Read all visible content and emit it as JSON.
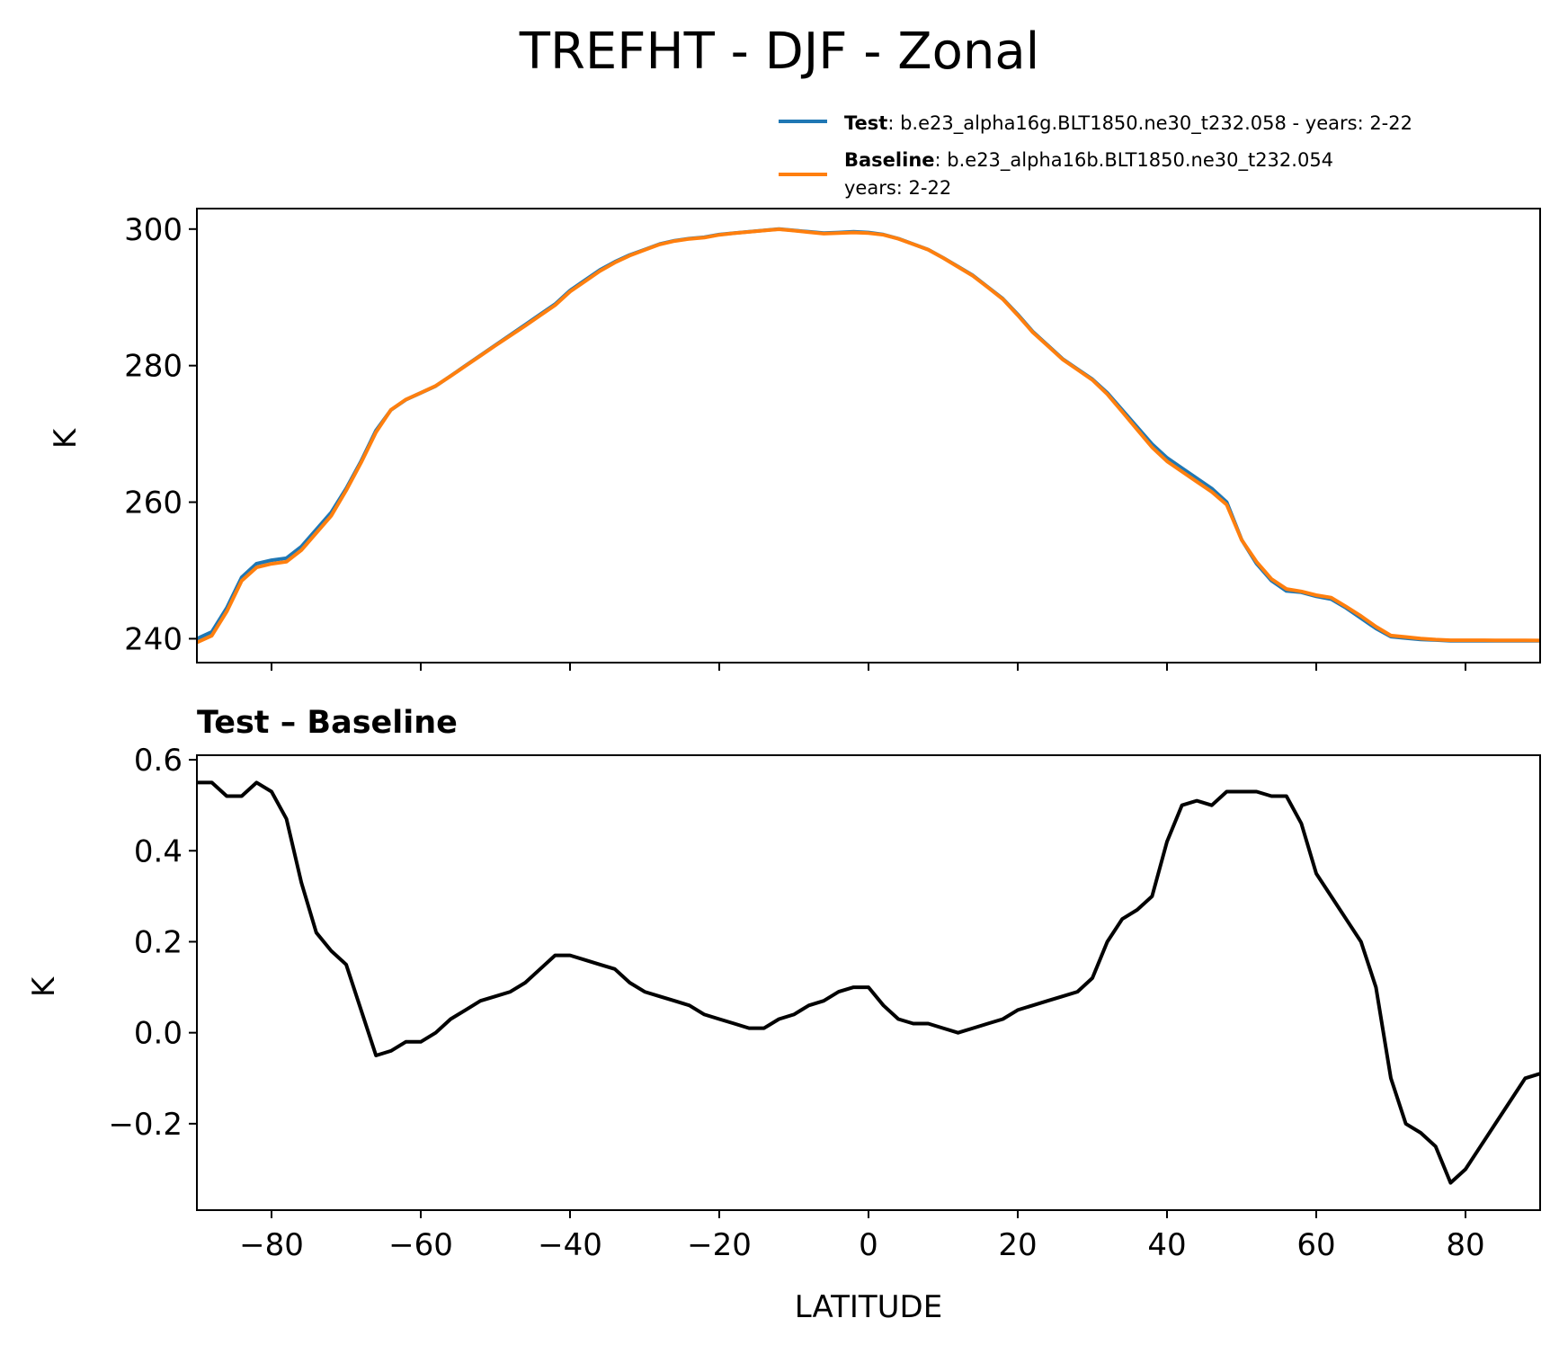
{
  "chart_data": [
    {
      "type": "line",
      "title": "TREFHT - DJF - Zonal",
      "xlabel": "",
      "ylabel": "K",
      "xlim": [
        -90,
        90
      ],
      "ylim": [
        236.5,
        303
      ],
      "yticks": [
        240,
        260,
        280,
        300
      ],
      "xticks": [
        -80,
        -60,
        -40,
        -20,
        0,
        20,
        40,
        60,
        80
      ],
      "grid": false,
      "legend": {
        "position": "above-right",
        "entries": [
          {
            "bold": "Test",
            "text": ": b.e23_alpha16g.BLT1850.ne30_t232.058 - years: 2-22",
            "color": "#1f77b4"
          },
          {
            "bold": "Baseline",
            "text": ": b.e23_alpha16b.BLT1850.ne30_t232.054",
            "text2": "years: 2-22",
            "color": "#ff7f0e"
          }
        ]
      },
      "x": [
        -90,
        -88,
        -86,
        -84,
        -82,
        -80,
        -78,
        -76,
        -74,
        -72,
        -70,
        -68,
        -66,
        -64,
        -62,
        -60,
        -58,
        -56,
        -54,
        -52,
        -50,
        -48,
        -46,
        -44,
        -42,
        -40,
        -38,
        -36,
        -34,
        -32,
        -30,
        -28,
        -26,
        -24,
        -22,
        -20,
        -18,
        -16,
        -14,
        -12,
        -10,
        -8,
        -6,
        -4,
        -2,
        0,
        2,
        4,
        6,
        8,
        10,
        12,
        14,
        16,
        18,
        20,
        22,
        24,
        26,
        28,
        30,
        32,
        34,
        36,
        38,
        40,
        42,
        44,
        46,
        48,
        50,
        52,
        54,
        56,
        58,
        60,
        62,
        64,
        66,
        68,
        70,
        72,
        74,
        76,
        78,
        80,
        82,
        84,
        86,
        88,
        90
      ],
      "series": [
        {
          "name": "Test",
          "color": "#1f77b4",
          "values": [
            240.0,
            241.0,
            244.5,
            249.0,
            251.0,
            251.5,
            251.8,
            253.5,
            256.0,
            258.5,
            262.0,
            266.0,
            270.5,
            273.5,
            275.0,
            276.0,
            277.0,
            278.5,
            280.0,
            281.5,
            283.0,
            284.5,
            286.0,
            287.5,
            289.0,
            291.0,
            292.5,
            294.0,
            295.2,
            296.2,
            297.0,
            297.8,
            298.3,
            298.6,
            298.8,
            299.2,
            299.4,
            299.6,
            299.8,
            300.0,
            299.8,
            299.6,
            299.4,
            299.5,
            299.6,
            299.5,
            299.2,
            298.6,
            297.8,
            297.0,
            295.8,
            294.5,
            293.2,
            291.5,
            289.8,
            287.5,
            285.0,
            283.0,
            281.0,
            279.5,
            278.0,
            276.0,
            273.5,
            271.0,
            268.5,
            266.5,
            265.0,
            263.5,
            262.0,
            260.0,
            254.5,
            251.0,
            248.5,
            247.0,
            246.8,
            246.2,
            245.8,
            244.5,
            243.0,
            241.5,
            240.3,
            240.1,
            239.9,
            239.8,
            239.7,
            239.7,
            239.7,
            239.7,
            239.7,
            239.7,
            239.7
          ]
        },
        {
          "name": "Baseline",
          "color": "#ff7f0e",
          "values": [
            239.45,
            240.45,
            243.98,
            248.48,
            250.45,
            250.97,
            251.28,
            252.97,
            255.49,
            258.01,
            261.72,
            265.79,
            270.25,
            273.52,
            275.03,
            276.02,
            277.03,
            278.47,
            279.96,
            281.44,
            282.93,
            284.39,
            285.84,
            287.36,
            288.84,
            290.83,
            292.34,
            293.85,
            295.08,
            296.11,
            296.94,
            297.74,
            298.24,
            298.56,
            298.75,
            299.16,
            299.39,
            299.59,
            299.79,
            299.97,
            299.77,
            299.55,
            299.32,
            299.41,
            299.5,
            299.4,
            299.16,
            298.58,
            297.78,
            296.98,
            295.77,
            294.46,
            293.14,
            291.45,
            289.72,
            287.38,
            284.9,
            282.92,
            280.92,
            279.42,
            277.9,
            275.82,
            273.24,
            270.63,
            268.04,
            265.99,
            264.48,
            263.0,
            261.51,
            259.63,
            254.48,
            251.26,
            248.75,
            247.28,
            246.93,
            246.38,
            246.02,
            244.71,
            243.32,
            241.77,
            240.46,
            240.25,
            240.01,
            239.87,
            239.78,
            239.78,
            239.78,
            239.77,
            239.76,
            239.75,
            239.74
          ]
        }
      ]
    },
    {
      "type": "line",
      "title": "Test – Baseline",
      "xlabel": "LATITUDE",
      "ylabel": "K",
      "xlim": [
        -90,
        90
      ],
      "ylim": [
        -0.39,
        0.61
      ],
      "yticks": [
        -0.2,
        0.0,
        0.2,
        0.4,
        0.6
      ],
      "ytick_labels": [
        "−0.2",
        "0.0",
        "0.2",
        "0.4",
        "0.6"
      ],
      "xticks": [
        -80,
        -60,
        -40,
        -20,
        0,
        20,
        40,
        60,
        80
      ],
      "xtick_labels": [
        "−80",
        "−60",
        "−40",
        "−20",
        "0",
        "20",
        "40",
        "60",
        "80"
      ],
      "grid": false,
      "x": [
        -90,
        -88,
        -86,
        -84,
        -82,
        -80,
        -78,
        -76,
        -74,
        -72,
        -70,
        -68,
        -66,
        -64,
        -62,
        -60,
        -58,
        -56,
        -54,
        -52,
        -50,
        -48,
        -46,
        -44,
        -42,
        -40,
        -38,
        -36,
        -34,
        -32,
        -30,
        -28,
        -26,
        -24,
        -22,
        -20,
        -18,
        -16,
        -14,
        -12,
        -10,
        -8,
        -6,
        -4,
        -2,
        0,
        2,
        4,
        6,
        8,
        10,
        12,
        14,
        16,
        18,
        20,
        22,
        24,
        26,
        28,
        30,
        32,
        34,
        36,
        38,
        40,
        42,
        44,
        46,
        48,
        50,
        52,
        54,
        56,
        58,
        60,
        62,
        64,
        66,
        68,
        70,
        72,
        74,
        76,
        78,
        80,
        82,
        84,
        86,
        88,
        90
      ],
      "series": [
        {
          "name": "",
          "color": "#000000",
          "values": [
            0.55,
            0.55,
            0.52,
            0.52,
            0.55,
            0.53,
            0.47,
            0.33,
            0.22,
            0.18,
            0.15,
            0.05,
            -0.05,
            -0.04,
            -0.02,
            -0.02,
            0.0,
            0.03,
            0.05,
            0.07,
            0.08,
            0.09,
            0.11,
            0.14,
            0.17,
            0.17,
            0.16,
            0.15,
            0.14,
            0.11,
            0.09,
            0.08,
            0.07,
            0.06,
            0.04,
            0.03,
            0.02,
            0.01,
            0.01,
            0.03,
            0.04,
            0.06,
            0.07,
            0.09,
            0.1,
            0.1,
            0.06,
            0.03,
            0.02,
            0.02,
            0.01,
            0.0,
            0.01,
            0.02,
            0.03,
            0.05,
            0.06,
            0.07,
            0.08,
            0.09,
            0.12,
            0.2,
            0.25,
            0.27,
            0.3,
            0.42,
            0.5,
            0.51,
            0.5,
            0.53,
            0.53,
            0.53,
            0.52,
            0.52,
            0.46,
            0.35,
            0.3,
            0.25,
            0.2,
            0.1,
            -0.1,
            -0.2,
            -0.22,
            -0.25,
            -0.33,
            -0.3,
            -0.25,
            -0.2,
            -0.15,
            -0.1,
            -0.09
          ]
        }
      ]
    }
  ]
}
